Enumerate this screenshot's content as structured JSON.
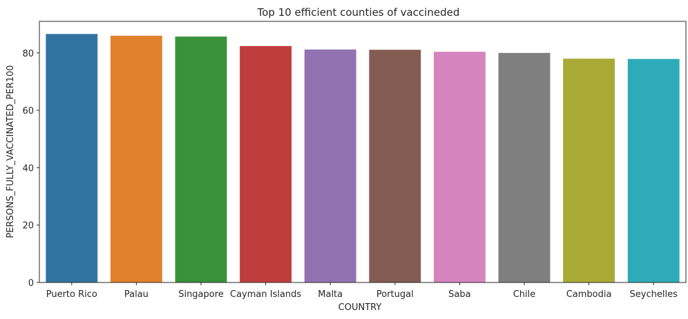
{
  "chart_data": {
    "type": "bar",
    "title": "Top 10 efficient counties of vaccineded",
    "xlabel": "COUNTRY",
    "ylabel": "PERSONS_FULLY_VACCINATED_PER100",
    "categories": [
      "Puerto Rico",
      "Palau",
      "Singapore",
      "Cayman Islands",
      "Malta",
      "Portugal",
      "Saba",
      "Chile",
      "Cambodia",
      "Seychelles"
    ],
    "values": [
      86.6,
      86.0,
      85.7,
      82.4,
      81.2,
      81.1,
      80.4,
      80.0,
      78.0,
      77.9
    ],
    "ylim": [
      0,
      91
    ],
    "yticks": [
      0,
      20,
      40,
      60,
      80
    ],
    "colors": [
      "#3274a1",
      "#e1812c",
      "#3a923a",
      "#c03d3e",
      "#9372b2",
      "#845b53",
      "#d684bd",
      "#7f7f7f",
      "#a9aa35",
      "#2eabb8"
    ],
    "grid": false,
    "legend": "none"
  }
}
